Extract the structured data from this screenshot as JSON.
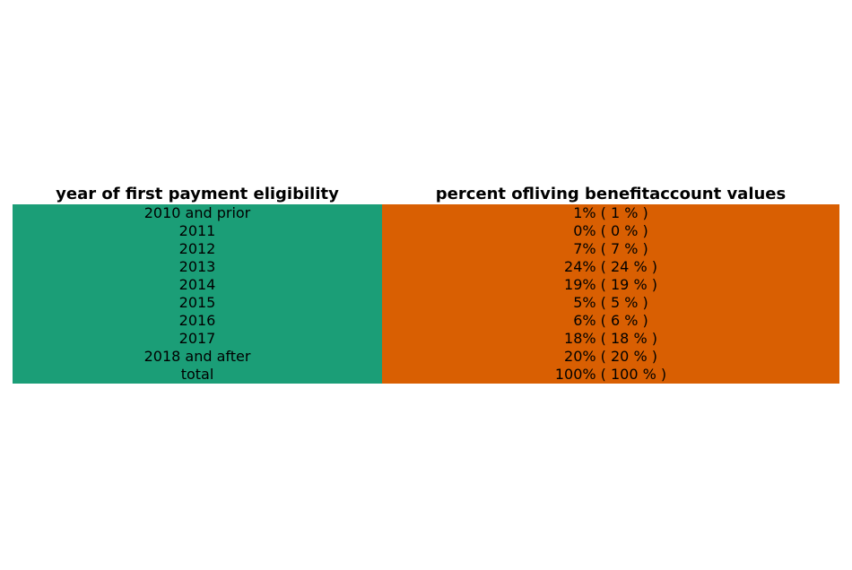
{
  "colors": {
    "left_column": "#1b9e77",
    "right_column": "#d95f02"
  },
  "chart_data": {
    "type": "table",
    "columns": [
      "year of first payment eligibility",
      "percent ofliving benefitaccount values"
    ],
    "rows": [
      [
        "2010 and prior",
        "1% ( 1 % )"
      ],
      [
        "2011",
        "0% ( 0 % )"
      ],
      [
        "2012",
        "7% ( 7 % )"
      ],
      [
        "2013",
        "24% ( 24 % )"
      ],
      [
        "2014",
        "19% ( 19 % )"
      ],
      [
        "2015",
        "5% ( 5 % )"
      ],
      [
        "2016",
        "6% ( 6 % )"
      ],
      [
        "2017",
        "18% ( 18 % )"
      ],
      [
        "2018 and after",
        "20% ( 20 % )"
      ],
      [
        "total",
        "100% ( 100 % )"
      ]
    ]
  }
}
